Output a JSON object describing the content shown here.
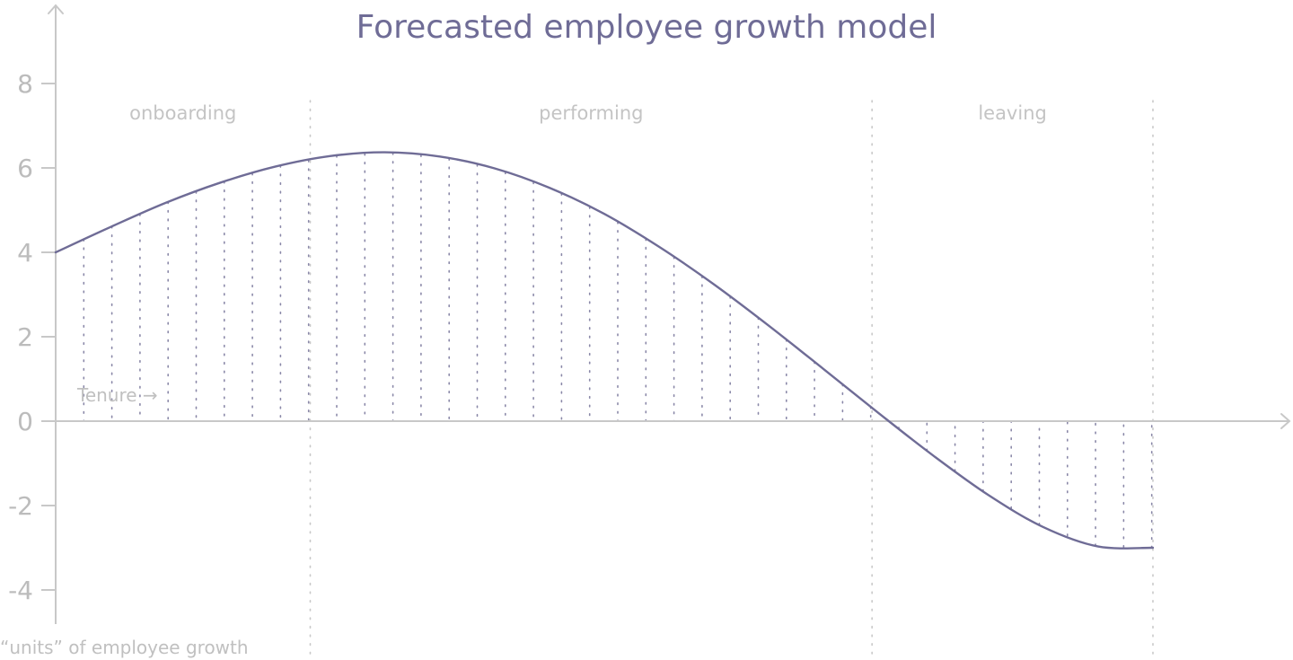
{
  "chart_data": {
    "type": "area",
    "title": "Forecasted employee growth model",
    "ylabel": "“units” of employee growth",
    "x_annotation": "Tenure →",
    "ylim": [
      -4.8,
      10
    ],
    "yticks": [
      8,
      6,
      4,
      2,
      0,
      -2,
      -4
    ],
    "ytick_labels": [
      "8",
      "6",
      "4",
      "2",
      "0",
      "-2",
      "-4"
    ],
    "xlim": [
      0,
      1
    ],
    "grid": false,
    "legend": "none",
    "colors": {
      "title": "#6f6c96",
      "curve": "#6f6c96",
      "fill_dots": "#8a88a8",
      "axis": "#c8c8c8",
      "labels": "#bcbcbc",
      "phase_dividers": "#c8c8c8"
    },
    "phases": [
      {
        "label": "onboarding",
        "start": 0.0,
        "end": 0.232
      },
      {
        "label": "performing",
        "start": 0.232,
        "end": 0.744
      },
      {
        "label": "leaving",
        "start": 0.744,
        "end": 1.0
      }
    ],
    "series": [
      {
        "x": [
          0.0,
          0.05,
          0.1,
          0.15,
          0.2,
          0.25,
          0.3,
          0.35,
          0.4,
          0.45,
          0.5,
          0.55,
          0.6,
          0.65,
          0.7,
          0.75,
          0.8,
          0.85,
          0.9,
          0.95,
          1.0
        ],
        "values": [
          4.0,
          4.6,
          5.17,
          5.65,
          6.03,
          6.28,
          6.37,
          6.27,
          5.99,
          5.53,
          4.91,
          4.13,
          3.24,
          2.26,
          1.23,
          0.19,
          -0.82,
          -1.75,
          -2.51,
          -2.97,
          -3.0
        ]
      }
    ]
  }
}
